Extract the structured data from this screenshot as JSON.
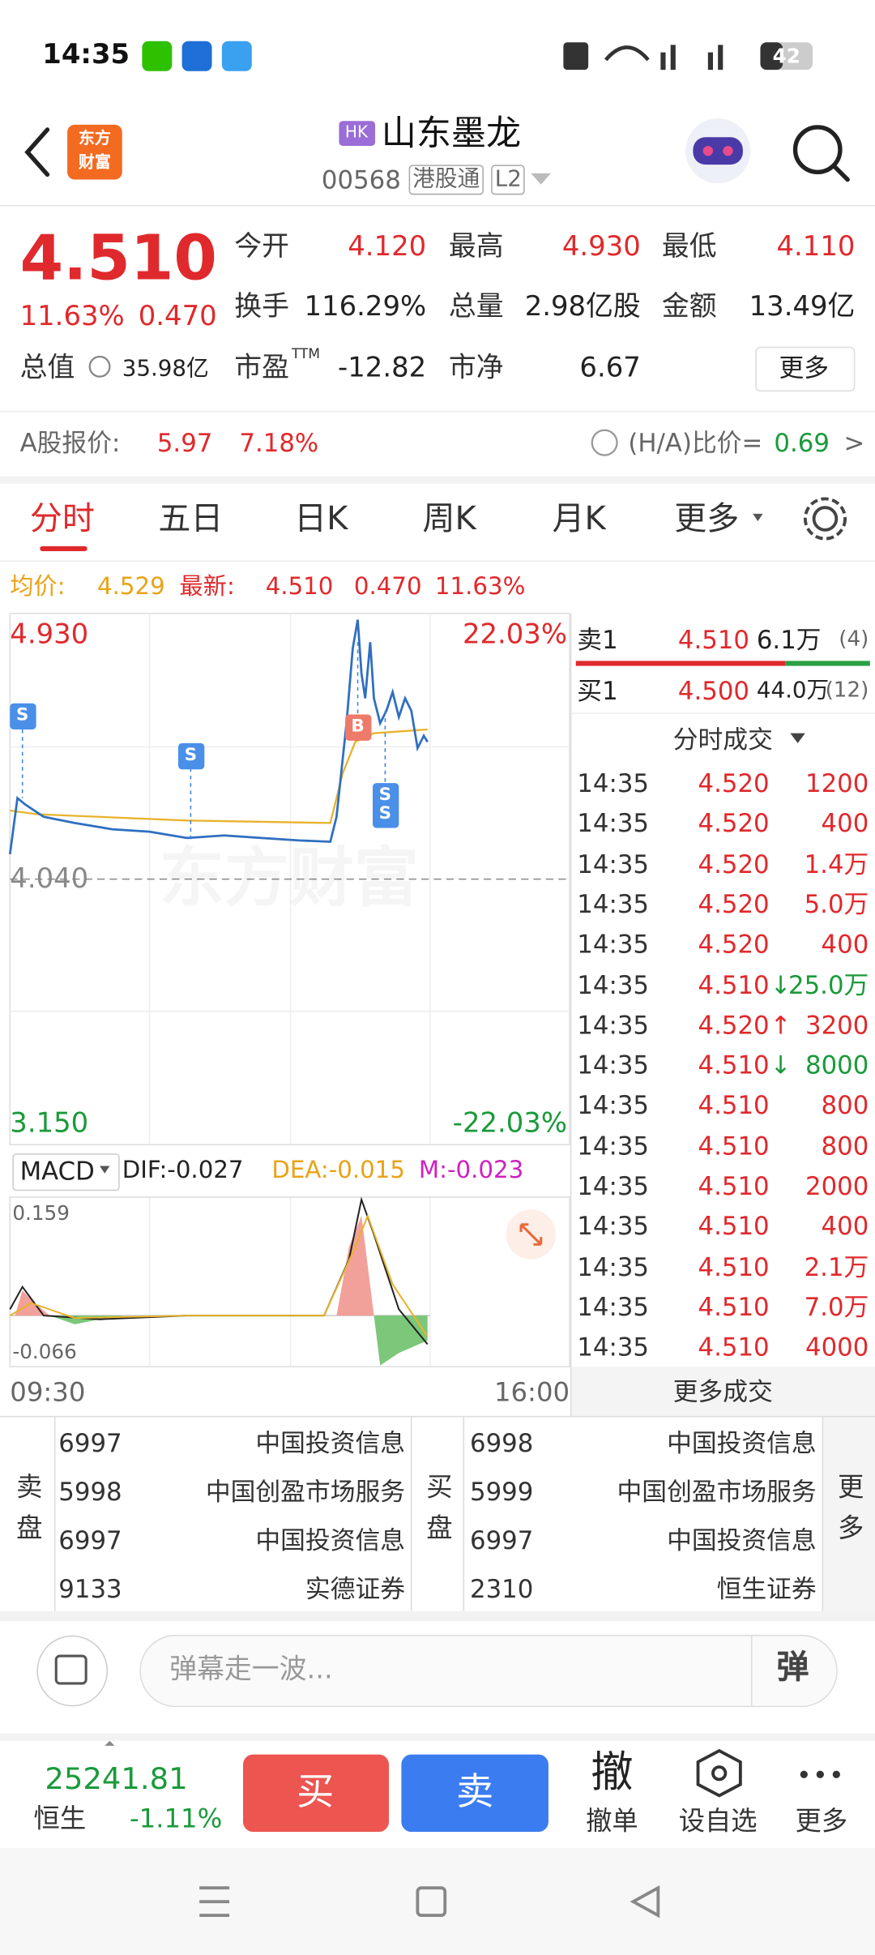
{
  "status_bar": {
    "time": "14:35",
    "battery": "42"
  },
  "header": {
    "logo": [
      "东方",
      "财富"
    ],
    "badge": "HK",
    "name": "山东墨龙",
    "code": "00568",
    "tags": [
      "港股通",
      "L2"
    ]
  },
  "quote": {
    "price": "4.510",
    "change_pct": "11.63%",
    "change": "0.470",
    "fields": [
      {
        "label": "今开",
        "value": "4.120"
      },
      {
        "label": "最高",
        "value": "4.930"
      },
      {
        "label": "最低",
        "value": "4.110"
      },
      {
        "label": "换手",
        "value": "116.29%"
      },
      {
        "label": "总量",
        "value": "2.98亿股"
      },
      {
        "label": "金额",
        "value": "13.49亿"
      },
      {
        "label": "市盈",
        "label_sup": "TTM",
        "value": "-12.82"
      },
      {
        "label": "市净",
        "value": "6.67"
      }
    ],
    "total_value": {
      "label": "总值",
      "value": "35.98亿"
    },
    "more": "更多"
  },
  "a_share": {
    "label": "A股报价:",
    "price": "5.97",
    "pct": "7.18%",
    "ratio_label": "(H/A)比价=",
    "ratio": "0.69",
    "arrow": ">"
  },
  "tabs": [
    "分时",
    "五日",
    "日K",
    "周K",
    "月K",
    "更多"
  ],
  "summary": {
    "avg_label": "均价:",
    "avg": "4.529",
    "latest_label": "最新:",
    "latest": "4.510",
    "change": "0.470",
    "pct": "11.63%"
  },
  "chart": {
    "watermark": "东方财富",
    "top_price": "4.930",
    "top_pct": "22.03%",
    "mid": "4.040",
    "bottom_price": "3.150",
    "bottom_pct": "-22.03%",
    "markers": [
      "S",
      "S",
      "S",
      "S",
      "B"
    ],
    "time_start": "09:30",
    "time_end": "16:00"
  },
  "macd": {
    "label": "MACD",
    "dif": "DIF:-0.027",
    "dea": "DEA:-0.015",
    "m": "M:-0.023",
    "top": "0.159",
    "bottom": "-0.066"
  },
  "order_book": [
    {
      "label": "卖1",
      "price": "4.510",
      "volume": "6.1万",
      "count": "(4)"
    },
    {
      "label": "买1",
      "price": "4.500",
      "volume": "44.0万",
      "count": "(12)"
    }
  ],
  "trades_title": "分时成交",
  "trades": [
    {
      "time": "14:35",
      "price": "4.520",
      "volume": "1200"
    },
    {
      "time": "14:35",
      "price": "4.520",
      "volume": "400"
    },
    {
      "time": "14:35",
      "price": "4.520",
      "volume": "1.4万"
    },
    {
      "time": "14:35",
      "price": "4.520",
      "volume": "5.0万"
    },
    {
      "time": "14:35",
      "price": "4.520",
      "volume": "400"
    },
    {
      "time": "14:35",
      "price": "4.510",
      "dir": "↓",
      "volume": "25.0万"
    },
    {
      "time": "14:35",
      "price": "4.520",
      "dir": "↑",
      "volume": "3200"
    },
    {
      "time": "14:35",
      "price": "4.510",
      "dir": "↓",
      "volume": "8000"
    },
    {
      "time": "14:35",
      "price": "4.510",
      "volume": "800"
    },
    {
      "time": "14:35",
      "price": "4.510",
      "volume": "800"
    },
    {
      "time": "14:35",
      "price": "4.510",
      "volume": "2000"
    },
    {
      "time": "14:35",
      "price": "4.510",
      "volume": "400"
    },
    {
      "time": "14:35",
      "price": "4.510",
      "volume": "2.1万"
    },
    {
      "time": "14:35",
      "price": "4.510",
      "volume": "7.0万"
    },
    {
      "time": "14:35",
      "price": "4.510",
      "volume": "4000"
    }
  ],
  "more_trades": "更多成交",
  "brokers": {
    "sell_label": "卖盘",
    "buy_label": "买盘",
    "more": "更多",
    "sell": [
      {
        "id": "6997",
        "name": "中国投资信息"
      },
      {
        "id": "5998",
        "name": "中国创盈市场服务"
      },
      {
        "id": "6997",
        "name": "中国投资信息"
      },
      {
        "id": "9133",
        "name": "实德证券"
      }
    ],
    "buy": [
      {
        "id": "6998",
        "name": "中国投资信息"
      },
      {
        "id": "5999",
        "name": "中国创盈市场服务"
      },
      {
        "id": "6997",
        "name": "中国投资信息"
      },
      {
        "id": "2310",
        "name": "恒生证券"
      }
    ]
  },
  "comment": {
    "placeholder": "弹幕走一波...",
    "button": "弹"
  },
  "bottom": {
    "index_value": "25241.81",
    "index_name": "恒生",
    "index_pct": "-1.11%",
    "buy": "买",
    "sell": "卖",
    "cancel_icon": "撤",
    "cancel": "撤单",
    "watch": "设自选",
    "more": "更多"
  }
}
